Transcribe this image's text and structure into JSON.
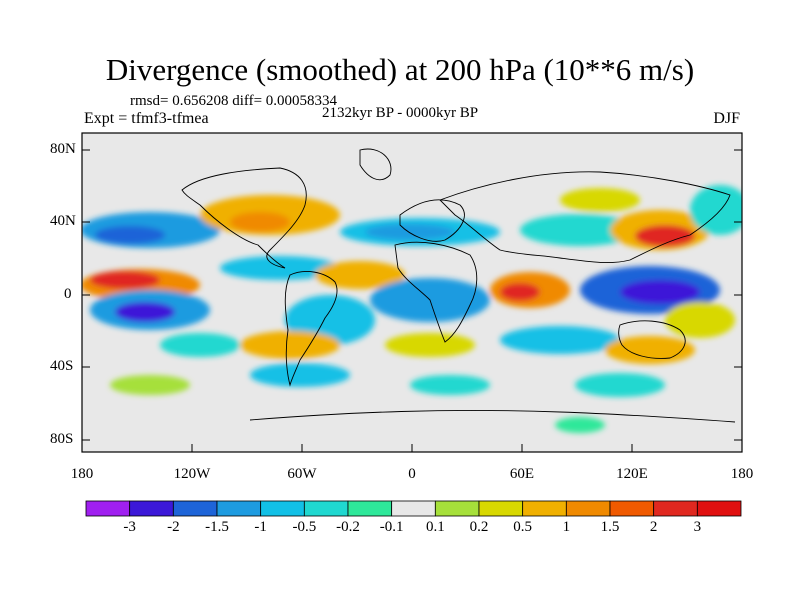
{
  "title": "Divergence (smoothed) at 200 hPa (10**6 m/s)",
  "stats": "rmsd= 0.656208 diff= 0.00058334",
  "experiment": "Expt = tfmf3-tfmea",
  "period": "2132kyr BP - 0000kyr BP",
  "season": "DJF",
  "lat_labels": [
    "80N",
    "40N",
    "0",
    "40S",
    "80S"
  ],
  "lon_labels": [
    "180",
    "120W",
    "60W",
    "0",
    "60E",
    "120E",
    "180"
  ],
  "colorbar": {
    "labels": [
      "-3",
      "-2",
      "-1.5",
      "-1",
      "-0.5",
      "-0.2",
      "-0.1",
      "0.1",
      "0.2",
      "0.5",
      "1",
      "1.5",
      "2",
      "3"
    ],
    "colors": [
      "#a020f0",
      "#3c18d8",
      "#1e64d8",
      "#1e9be0",
      "#12c0e6",
      "#20d8d0",
      "#2ee89a",
      "#e8e8e8",
      "#a6e03a",
      "#d8d800",
      "#f0b000",
      "#f08a00",
      "#f05a00",
      "#e02820",
      "#e01010"
    ]
  },
  "legend_range": "-3 to 3"
}
